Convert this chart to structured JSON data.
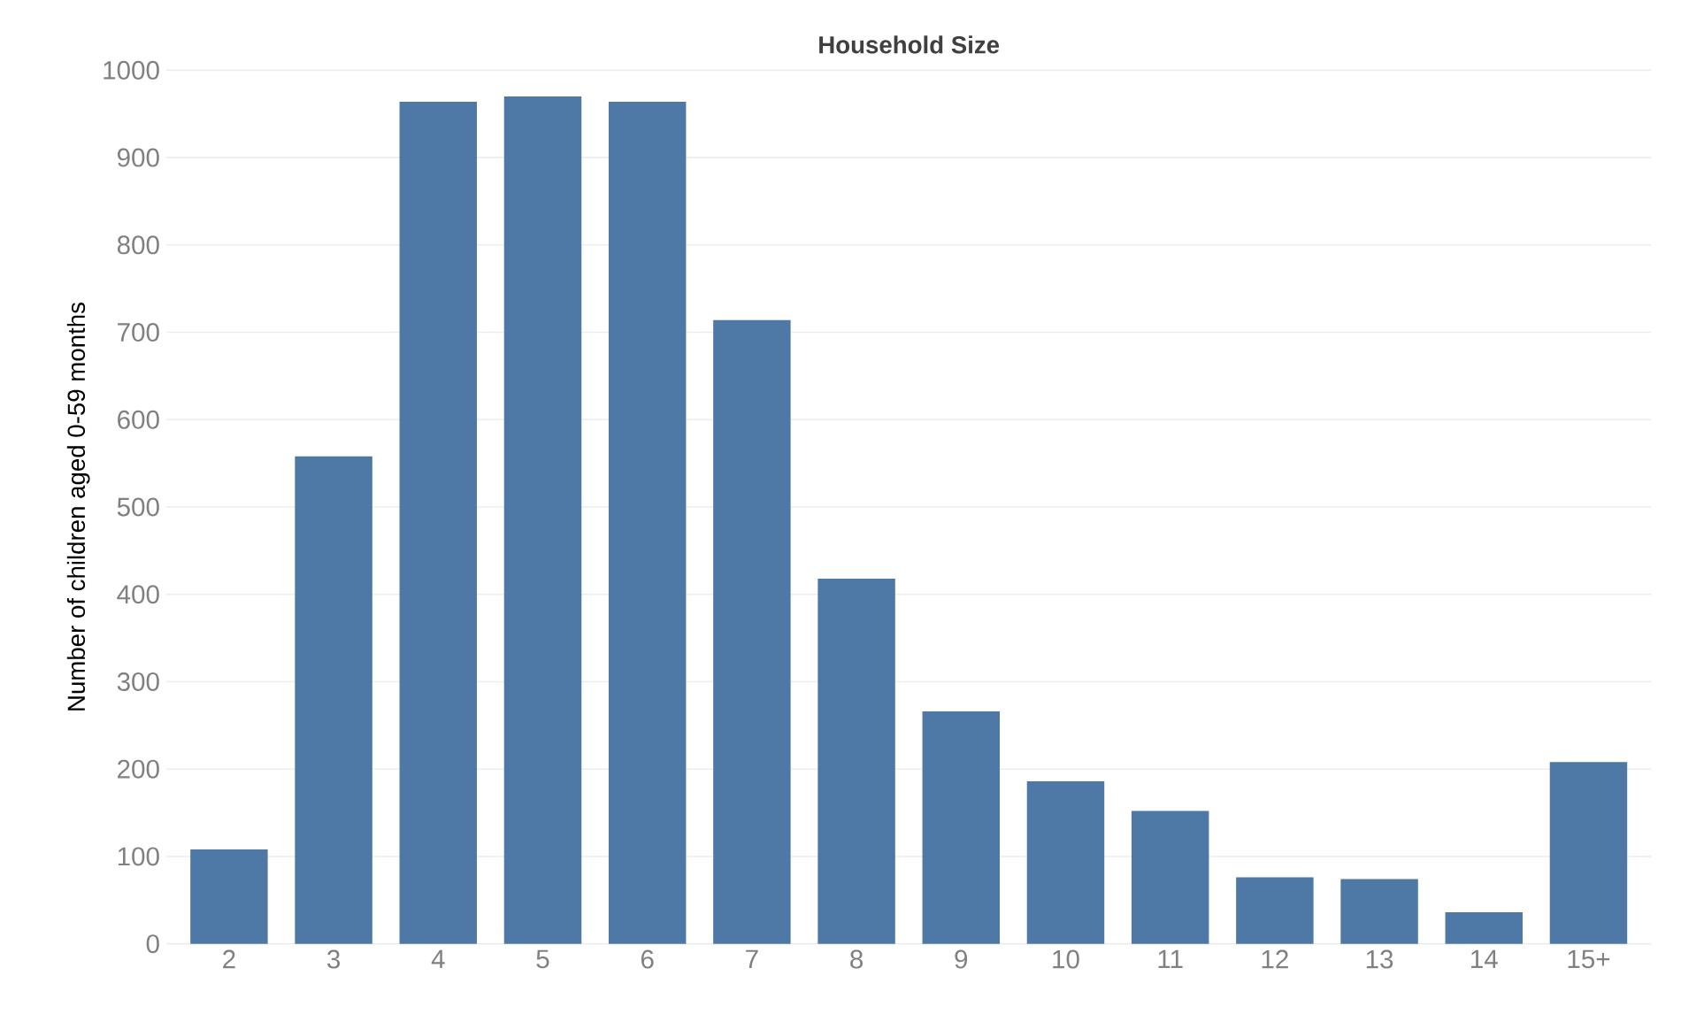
{
  "chart_data": {
    "type": "bar",
    "title": "Household Size",
    "ylabel": "Number of children aged 0-59 months",
    "categories": [
      "2",
      "3",
      "4",
      "5",
      "6",
      "7",
      "8",
      "9",
      "10",
      "11",
      "12",
      "13",
      "14",
      "15+"
    ],
    "values": [
      108,
      558,
      964,
      970,
      964,
      714,
      418,
      266,
      186,
      152,
      76,
      74,
      36,
      208
    ],
    "color": "#4e79a7",
    "ylim": [
      0,
      1000
    ],
    "yticks": [
      0,
      100,
      200,
      300,
      400,
      500,
      600,
      700,
      800,
      900,
      1000
    ],
    "grid": "y"
  }
}
